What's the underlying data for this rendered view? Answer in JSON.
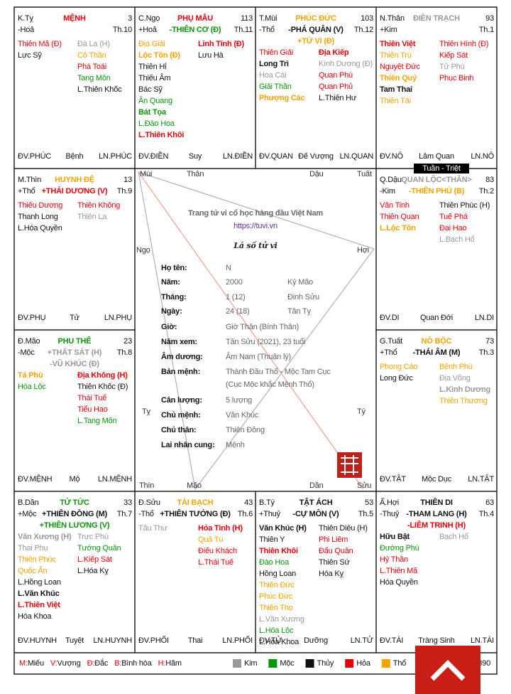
{
  "palaces": [
    {
      "branch": "K.Tỵ",
      "element": "-Hoả",
      "name": "MỆNH",
      "name_color": "#e8000b",
      "age": 3,
      "month": "Th.10",
      "major": [],
      "left": [
        {
          "t": "Thiên Mã (Đ)",
          "c": "#e8000b"
        },
        {
          "t": "Lực Sỹ",
          "c": "#111111"
        }
      ],
      "right": [
        {
          "t": "Đà La (H)",
          "c": "#999999"
        },
        {
          "t": "Cô Thần",
          "c": "#f5a300"
        },
        {
          "t": "Phá Toái",
          "c": "#e8000b"
        },
        {
          "t": "Tang Môn",
          "c": "#0a960a"
        },
        {
          "t": "L.Thiên Khốc",
          "c": "#111111"
        }
      ],
      "bottom": [
        "ĐV.PHÚC",
        "Bệnh",
        "LN.PHÚC"
      ]
    },
    {
      "branch": "C.Ngọ",
      "element": "+Hoả",
      "name": "PHỤ MẪU",
      "name_color": "#e8000b",
      "age": 113,
      "month": "Th.11",
      "major": [
        {
          "t": "-THIÊN CƠ (Đ)",
          "c": "#0a960a"
        }
      ],
      "left": [
        {
          "t": "Địa Giải",
          "c": "#f5a300"
        },
        {
          "t": "Lộc Tồn (Đ)",
          "c": "#f5a300",
          "b": true
        },
        {
          "t": "Thiên Hỉ",
          "c": "#111111"
        },
        {
          "t": "Thiếu Âm",
          "c": "#111111"
        },
        {
          "t": "Bác Sỹ",
          "c": "#111111"
        },
        {
          "t": "Ân Quang",
          "c": "#0a960a"
        },
        {
          "t": "Bát Tọa",
          "c": "#0a960a",
          "b": true
        },
        {
          "t": "L.Đào Hoa",
          "c": "#0a960a"
        },
        {
          "t": "L.Thiên Khôi",
          "c": "#e8000b",
          "b": true
        }
      ],
      "right": [
        {
          "t": "Linh Tinh (Đ)",
          "c": "#e8000b",
          "b": true
        },
        {
          "t": "Lưu Hà",
          "c": "#111111"
        }
      ],
      "bottom": [
        "ĐV.ĐIỀN",
        "Suy",
        "LN.ĐIỀN"
      ]
    },
    {
      "branch": "T.Mùi",
      "element": "-Thổ",
      "name": "PHÚC ĐỨC",
      "name_color": "#f5a300",
      "age": 103,
      "month": "Th.12",
      "major": [
        {
          "t": "-PHÁ QUÂN (V)",
          "c": "#111111"
        },
        {
          "t": "+TỬ VI (Đ)",
          "c": "#f5a300"
        }
      ],
      "left": [
        {
          "t": "Thiên Giải",
          "c": "#e8000b"
        },
        {
          "t": "Long Trì",
          "c": "#111111",
          "b": true
        },
        {
          "t": "Hoa Cái",
          "c": "#999999"
        },
        {
          "t": "Giải Thần",
          "c": "#0a960a"
        },
        {
          "t": "Phượng Các",
          "c": "#f5a300",
          "b": true
        }
      ],
      "right": [
        {
          "t": "Địa Kiếp",
          "c": "#e8000b",
          "b": true
        },
        {
          "t": "Kình Dương (Đ)",
          "c": "#999999"
        },
        {
          "t": "Quan Phù",
          "c": "#e8000b"
        },
        {
          "t": "Quan Phủ",
          "c": "#e8000b"
        },
        {
          "t": "L.Thiên Hư",
          "c": "#111111"
        }
      ],
      "bottom": [
        "ĐV.QUAN",
        "Đế Vượng",
        "LN.QUAN"
      ]
    },
    {
      "branch": "N.Thân",
      "element": "+Kim",
      "name": "ĐIỀN TRẠCH",
      "name_color": "#999999",
      "age": 93,
      "month": "Th.1",
      "major": [],
      "left": [
        {
          "t": "Thiên Việt",
          "c": "#e8000b",
          "b": true
        },
        {
          "t": "Thiên Trù",
          "c": "#f5a300"
        },
        {
          "t": "Nguyệt Đức",
          "c": "#e8000b"
        },
        {
          "t": "Thiên Quý",
          "c": "#f5a300",
          "b": true
        },
        {
          "t": "Tam Thai",
          "c": "#111111",
          "b": true
        },
        {
          "t": "Thiên Tài",
          "c": "#f5a300"
        }
      ],
      "right": [
        {
          "t": "Thiên Hình (Đ)",
          "c": "#e8000b"
        },
        {
          "t": "Kiếp Sát",
          "c": "#e8000b"
        },
        {
          "t": "Tử Phù",
          "c": "#999999"
        },
        {
          "t": "Phục Binh",
          "c": "#e8000b"
        }
      ],
      "bottom": [
        "ĐV.NÔ",
        "Lâm Quan",
        "LN.NÔ"
      ]
    },
    {
      "branch": "Q.Dậu",
      "element": "-Kim",
      "name": "QUAN LỘC<THÂN>",
      "name_color": "#999999",
      "age": 83,
      "month": "Th.2",
      "major": [
        {
          "t": "-THIÊN PHỦ (B)",
          "c": "#f5a300"
        }
      ],
      "left": [
        {
          "t": "Văn Tinh",
          "c": "#e8000b"
        },
        {
          "t": "Thiên Quan",
          "c": "#e8000b"
        },
        {
          "t": "L.Lộc Tồn",
          "c": "#f5a300",
          "b": true
        }
      ],
      "right": [
        {
          "t": "Thiên Phúc (H)",
          "c": "#111111"
        },
        {
          "t": "Tuế Phá",
          "c": "#e8000b"
        },
        {
          "t": "Đại Hao",
          "c": "#e8000b"
        },
        {
          "t": "L.Bạch Hổ",
          "c": "#999999"
        }
      ],
      "bottom": [
        "ĐV.DI",
        "Quan Đới",
        "LN.DI"
      ]
    },
    {
      "branch": "G.Tuất",
      "element": "+Thổ",
      "name": "NÔ BỘC",
      "name_color": "#f5a300",
      "age": 73,
      "month": "Th.3",
      "major": [
        {
          "t": "-THÁI ÂM (M)",
          "c": "#111111"
        }
      ],
      "left": [
        {
          "t": "Phong Cáo",
          "c": "#f5a300"
        },
        {
          "t": "Long Đức",
          "c": "#111111"
        }
      ],
      "right": [
        {
          "t": "Bệnh Phù",
          "c": "#f5a300"
        },
        {
          "t": "Địa Võng",
          "c": "#999999"
        },
        {
          "t": "L.Kình Dương",
          "c": "#999999",
          "b": true
        },
        {
          "t": "Thiên Thương",
          "c": "#f5a300"
        }
      ],
      "bottom": [
        "ĐV.TẬT",
        "Mộc Dục",
        "LN.TẬT"
      ]
    },
    {
      "branch": "Ấ.Hợi",
      "element": "-Thuỷ",
      "name": "THIÊN DI",
      "name_color": "#111111",
      "age": 63,
      "month": "Th.4",
      "major": [
        {
          "t": "-THAM LANG (H)",
          "c": "#111111"
        },
        {
          "t": "-LIÊM TRINH (H)",
          "c": "#e8000b"
        }
      ],
      "left": [
        {
          "t": "Hữu Bật",
          "c": "#111111",
          "b": true
        },
        {
          "t": "Đường Phù",
          "c": "#0a960a"
        },
        {
          "t": "Hỷ Thần",
          "c": "#e8000b"
        },
        {
          "t": "L.Thiên Mã",
          "c": "#e8000b"
        },
        {
          "t": "Hóa Quyền",
          "c": "#111111"
        }
      ],
      "right": [
        {
          "t": "Bạch Hổ",
          "c": "#999999"
        }
      ],
      "bottom": [
        "ĐV.TÀI",
        "Tràng Sinh",
        "LN.TÀI"
      ]
    },
    {
      "branch": "B.Tý",
      "element": "+Thuỷ",
      "name": "TẬT ÁCH",
      "name_color": "#111111",
      "age": 53,
      "month": "Th.5",
      "major": [
        {
          "t": "-CỰ MÔN (V)",
          "c": "#111111"
        }
      ],
      "left": [
        {
          "t": "Văn Khúc (H)",
          "c": "#111111",
          "b": true
        },
        {
          "t": "Thiên Y",
          "c": "#111111"
        },
        {
          "t": "Thiên Khôi",
          "c": "#e8000b",
          "b": true
        },
        {
          "t": "Đào Hoa",
          "c": "#0a960a"
        },
        {
          "t": "Hồng Loan",
          "c": "#111111"
        },
        {
          "t": "Thiên Đức",
          "c": "#f5a300"
        },
        {
          "t": "Phúc Đức",
          "c": "#f5a300"
        },
        {
          "t": "Thiên Thọ",
          "c": "#f5a300"
        },
        {
          "t": "L.Văn Xương",
          "c": "#999999"
        },
        {
          "t": "L.Hóa Lộc",
          "c": "#0a960a"
        },
        {
          "t": "L.Hóa Khoa",
          "c": "#111111"
        }
      ],
      "right": [
        {
          "t": "Thiên Diêu (H)",
          "c": "#111111"
        },
        {
          "t": "Phi Liêm",
          "c": "#e8000b"
        },
        {
          "t": "Đẩu Quân",
          "c": "#e8000b"
        },
        {
          "t": "Thiên Sứ",
          "c": "#111111"
        },
        {
          "t": "Hóa Kỵ",
          "c": "#111111"
        }
      ],
      "bottom": [
        "ĐV.TỬ",
        "Dưỡng",
        "LN.TỬ"
      ]
    },
    {
      "branch": "Đ.Sửu",
      "element": "-Thổ",
      "name": "TÀI BẠCH",
      "name_color": "#f5a300",
      "age": 43,
      "month": "Th.6",
      "major": [
        {
          "t": "+THIÊN TƯỚNG (Đ)",
          "c": "#111111"
        }
      ],
      "left": [
        {
          "t": "Tấu Thư",
          "c": "#999999"
        }
      ],
      "right": [
        {
          "t": "Hỏa Tinh (H)",
          "c": "#e8000b",
          "b": true
        },
        {
          "t": "Quả Tú",
          "c": "#f5a300"
        },
        {
          "t": "Điếu Khách",
          "c": "#e8000b"
        },
        {
          "t": "L.Thái Tuế",
          "c": "#e8000b"
        }
      ],
      "bottom": [
        "ĐV.PHỐI",
        "Thai",
        "LN.PHỐI"
      ]
    },
    {
      "branch": "B.Dần",
      "element": "+Mộc",
      "name": "TỬ TỨC",
      "name_color": "#0a960a",
      "age": 33,
      "month": "Th.7",
      "major": [
        {
          "t": "+THIÊN ĐỒNG (M)",
          "c": "#111111"
        },
        {
          "t": "+THIÊN LƯƠNG (V)",
          "c": "#0a960a"
        }
      ],
      "left": [
        {
          "t": "Văn Xương (H)",
          "c": "#999999",
          "b": true
        },
        {
          "t": "Thai Phụ",
          "c": "#999999"
        },
        {
          "t": "Thiên Phúc",
          "c": "#f5a300"
        },
        {
          "t": "Quốc Ấn",
          "c": "#f5a300"
        },
        {
          "t": "L.Hồng Loan",
          "c": "#111111"
        },
        {
          "t": "L.Văn Khúc",
          "c": "#111111",
          "b": true
        },
        {
          "t": "L.Thiên Việt",
          "c": "#e8000b",
          "b": true
        },
        {
          "t": "Hóa Khoa",
          "c": "#111111"
        }
      ],
      "right": [
        {
          "t": "Trực Phù",
          "c": "#999999"
        },
        {
          "t": "Tướng Quân",
          "c": "#0a960a"
        },
        {
          "t": "L.Kiếp Sát",
          "c": "#e8000b"
        },
        {
          "t": "L.Hóa Kỵ",
          "c": "#111111"
        }
      ],
      "bottom": [
        "ĐV.HUYNH",
        "Tuyệt",
        "LN.HUYNH"
      ]
    },
    {
      "branch": "Đ.Mão",
      "element": "-Mộc",
      "name": "PHU THÊ",
      "name_color": "#0a960a",
      "age": 23,
      "month": "Th.8",
      "major": [
        {
          "t": "+THẤT SÁT (H)",
          "c": "#999999"
        },
        {
          "t": "-VŨ KHÚC (Đ)",
          "c": "#999999"
        }
      ],
      "left": [
        {
          "t": "Tả Phù",
          "c": "#f5a300",
          "b": true
        },
        {
          "t": "Hóa Lộc",
          "c": "#0a960a"
        }
      ],
      "right": [
        {
          "t": "Địa Không (H)",
          "c": "#e8000b",
          "b": true
        },
        {
          "t": "Thiên Khốc (Đ)",
          "c": "#111111"
        },
        {
          "t": "Thái Tuế",
          "c": "#e8000b"
        },
        {
          "t": "Tiểu Hao",
          "c": "#e8000b"
        },
        {
          "t": "L.Tang Môn",
          "c": "#0a960a"
        }
      ],
      "bottom": [
        "ĐV.MỆNH",
        "Mộ",
        "LN.MỆNH"
      ]
    },
    {
      "branch": "M.Thìn",
      "element": "+Thổ",
      "name": "HUYNH ĐỆ",
      "name_color": "#f5a300",
      "age": 13,
      "month": "Th.9",
      "major": [
        {
          "t": "+THÁI DƯƠNG (V)",
          "c": "#e8000b"
        }
      ],
      "left": [
        {
          "t": "Thiếu Dương",
          "c": "#e8000b"
        },
        {
          "t": "Thanh Long",
          "c": "#111111"
        },
        {
          "t": "L.Hóa Quyền",
          "c": "#111111"
        }
      ],
      "right": [
        {
          "t": "Thiên Không",
          "c": "#e8000b"
        },
        {
          "t": "Thiên La",
          "c": "#999999"
        }
      ],
      "bottom": [
        "ĐV.PHỤ",
        "Tử",
        "LN.PHỤ"
      ]
    }
  ],
  "tuan_triet": "Tuần - Triệt",
  "center": {
    "tagline": "Trang tử vi cổ học hàng đầu Việt Nam",
    "url": "https://tuvi.vn",
    "title": "Lá số tử vi",
    "branches": [
      "Mùi",
      "Thân",
      "Dậu",
      "Tuất",
      "Ngọ",
      "Hợi",
      "Tỵ",
      "Tý",
      "Thìn",
      "Mão",
      "Dần",
      "Sửu"
    ],
    "info": [
      {
        "label": "Họ tên:",
        "values": [
          "N"
        ]
      },
      {
        "label": "Năm:",
        "values": [
          "2000",
          "Kỷ Mão"
        ]
      },
      {
        "label": "Tháng:",
        "values": [
          "1 (12)",
          "Đinh Sửu"
        ]
      },
      {
        "label": "Ngày:",
        "values": [
          "24 (18)",
          "Tân Tỵ"
        ]
      },
      {
        "label": "Giờ:",
        "values": [
          "Giờ Thân (Bính Thân)"
        ]
      },
      {
        "label": "Năm xem:",
        "values": [
          "Tân Sửu (2021), 23 tuổi"
        ]
      },
      {
        "label": "Âm dương:",
        "values": [
          "Âm Nam (Thuận lý)"
        ]
      },
      {
        "label": "Bản mệnh:",
        "values": [
          "Thành Đầu Thổ - Mộc Tam Cục"
        ],
        "next": "(Cục Mộc khắc Mệnh Thổ)"
      },
      {
        "label": "Cân lượng:",
        "values": [
          "5 lượng"
        ]
      },
      {
        "label": "Chủ mệnh:",
        "values": [
          "Văn Khúc"
        ]
      },
      {
        "label": "Chủ thân:",
        "values": [
          "Thiên Đồng"
        ]
      },
      {
        "label": "Lai nhân cung:",
        "values": [
          "Mệnh"
        ]
      }
    ]
  },
  "footer": {
    "marks": [
      {
        "key": "M:",
        "text": "Miếu"
      },
      {
        "key": "V:",
        "text": "Vượng"
      },
      {
        "key": "Đ:",
        "text": "Đắc"
      },
      {
        "key": "B:",
        "text": "Bình hòa"
      },
      {
        "key": "H:",
        "text": "Hãm"
      }
    ],
    "elements": [
      {
        "name": "Kim",
        "color": "#999999"
      },
      {
        "name": "Mộc",
        "color": "#0a960a"
      },
      {
        "name": "Thủy",
        "color": "#111111"
      },
      {
        "name": "Hỏa",
        "color": "#e8000b"
      },
      {
        "name": "Thổ",
        "color": "#f5a300"
      }
    ],
    "code": "890"
  }
}
